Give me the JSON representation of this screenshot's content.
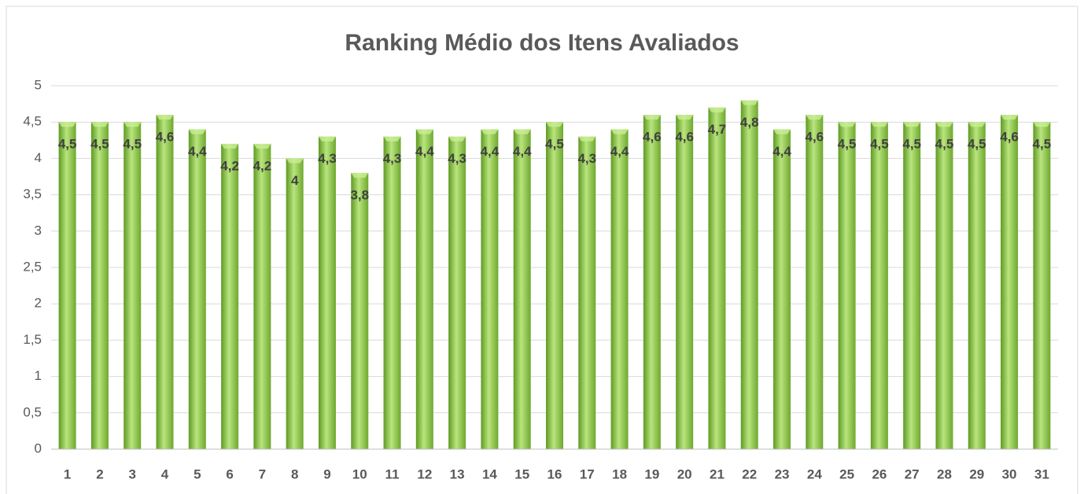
{
  "chart_data": {
    "type": "bar",
    "title": "Ranking Médio dos Itens Avaliados",
    "categories": [
      "1",
      "2",
      "3",
      "4",
      "5",
      "6",
      "7",
      "8",
      "9",
      "10",
      "11",
      "12",
      "13",
      "14",
      "15",
      "16",
      "17",
      "18",
      "19",
      "20",
      "21",
      "22",
      "23",
      "24",
      "25",
      "26",
      "27",
      "28",
      "29",
      "30",
      "31"
    ],
    "values": [
      4.5,
      4.5,
      4.5,
      4.6,
      4.4,
      4.2,
      4.2,
      4,
      4.3,
      3.8,
      4.3,
      4.4,
      4.3,
      4.4,
      4.4,
      4.5,
      4.3,
      4.4,
      4.6,
      4.6,
      4.7,
      4.8,
      4.4,
      4.6,
      4.5,
      4.5,
      4.5,
      4.5,
      4.5,
      4.6,
      4.5
    ],
    "value_labels": [
      "4,5",
      "4,5",
      "4,5",
      "4,6",
      "4,4",
      "4,2",
      "4,2",
      "4",
      "4,3",
      "3,8",
      "4,3",
      "4,4",
      "4,3",
      "4,4",
      "4,4",
      "4,5",
      "4,3",
      "4,4",
      "4,6",
      "4,6",
      "4,7",
      "4,8",
      "4,4",
      "4,6",
      "4,5",
      "4,5",
      "4,5",
      "4,5",
      "4,5",
      "4,6",
      "4,5"
    ],
    "color": "#92d050",
    "ylim": [
      0,
      5
    ],
    "yticks": [
      0,
      {
        "value": 0.5,
        "label": "0,5"
      },
      1,
      {
        "value": 1.5,
        "label": "1,5"
      },
      2,
      {
        "value": 2.5,
        "label": "2,5"
      },
      3,
      {
        "value": 3.5,
        "label": "3,5"
      },
      4,
      {
        "value": 4.5,
        "label": "4,5"
      },
      5
    ],
    "grid": true
  }
}
